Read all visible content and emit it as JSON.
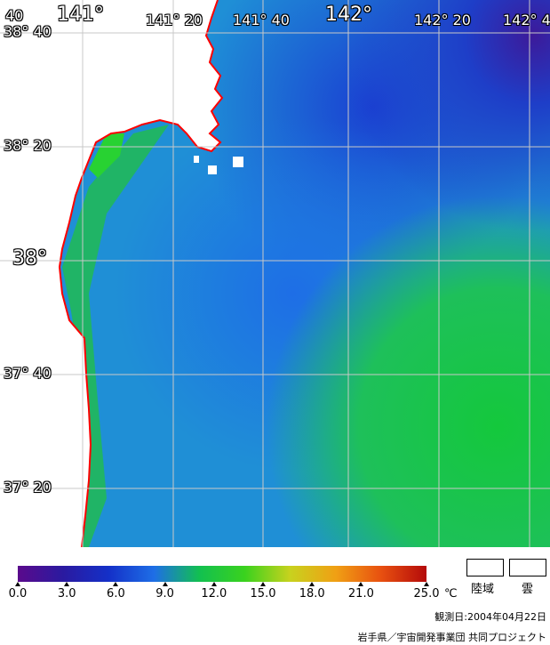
{
  "map": {
    "lon_labels": [
      {
        "text": "141°",
        "size": "big"
      },
      {
        "text": "141° 20",
        "size": "small"
      },
      {
        "text": "141° 40",
        "size": "small"
      },
      {
        "text": "142°",
        "size": "big"
      },
      {
        "text": "142° 20",
        "size": "small"
      },
      {
        "text": "142° 4",
        "size": "small"
      }
    ],
    "lat_labels": [
      {
        "text": "38° 40",
        "size": "small"
      },
      {
        "text": "38° 20",
        "size": "small"
      },
      {
        "text": "38°",
        "size": "big"
      },
      {
        "text": "37° 40",
        "size": "small"
      },
      {
        "text": "37° 20",
        "size": "small"
      }
    ],
    "corner_label": "40",
    "coast_color": "#ff0000",
    "land_color": "#ffffff",
    "grid_color": "#c8c8c8"
  },
  "colorbar": {
    "ticks": [
      "0.0",
      "3.0",
      "6.0",
      "9.0",
      "12.0",
      "15.0",
      "18.0",
      "21.0",
      "25.0"
    ],
    "tick_values": [
      0.0,
      3.0,
      6.0,
      9.0,
      12.0,
      15.0,
      18.0,
      21.0,
      25.0
    ],
    "unit": "℃",
    "colors": [
      "#5a0a8c",
      "#2a1aa0",
      "#1430c8",
      "#1e6ee6",
      "#12c050",
      "#3ad21e",
      "#c8d21e",
      "#f0a014",
      "#e85010",
      "#b40a0a"
    ]
  },
  "legend": {
    "land_label": "陸域",
    "cloud_label": "雲"
  },
  "footer": {
    "observation_date": "観測日:2004年04月22日",
    "credit": "岩手県／宇宙開発事業団 共同プロジェクト"
  }
}
